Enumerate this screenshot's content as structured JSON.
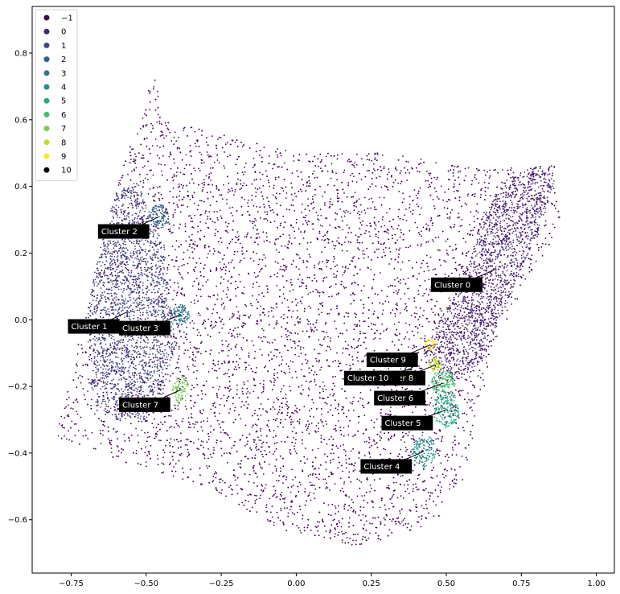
{
  "chart_data": {
    "type": "scatter",
    "title": "",
    "xlabel": "",
    "ylabel": "",
    "xlim": [
      -0.88,
      1.06
    ],
    "ylim": [
      -0.76,
      0.94
    ],
    "grid": false,
    "legend": {
      "placement": "top-left",
      "entries": [
        "−1",
        "0",
        "1",
        "2",
        "3",
        "4",
        "5",
        "6",
        "7",
        "8",
        "9",
        "10"
      ]
    },
    "x_ticks": [
      -0.75,
      -0.5,
      -0.25,
      0.0,
      0.25,
      0.5,
      0.75,
      1.0
    ],
    "x_tick_labels": [
      "−0.75",
      "−0.50",
      "−0.25",
      "0.00",
      "0.25",
      "0.50",
      "0.75",
      "1.00"
    ],
    "y_ticks": [
      -0.6,
      -0.4,
      -0.2,
      0.0,
      0.2,
      0.4,
      0.6,
      0.8
    ],
    "y_tick_labels": [
      "−0.6",
      "−0.4",
      "−0.2",
      "0.0",
      "0.2",
      "0.4",
      "0.6",
      "0.8"
    ],
    "colors": [
      "#440154",
      "#482475",
      "#414487",
      "#355f8d",
      "#2a788e",
      "#21918c",
      "#22a884",
      "#44bf70",
      "#7ad151",
      "#bddf26",
      "#fde725"
    ],
    "noise_region": [
      [
        -0.8,
        -0.35
      ],
      [
        -0.72,
        -0.05
      ],
      [
        -0.58,
        0.45
      ],
      [
        -0.47,
        0.75
      ],
      [
        -0.45,
        0.6
      ],
      [
        0.0,
        0.5
      ],
      [
        0.3,
        0.5
      ],
      [
        0.62,
        0.45
      ],
      [
        0.86,
        0.47
      ],
      [
        0.88,
        0.28
      ],
      [
        0.76,
        0.1
      ],
      [
        0.65,
        -0.1
      ],
      [
        0.6,
        -0.32
      ],
      [
        0.55,
        -0.5
      ],
      [
        0.45,
        -0.62
      ],
      [
        0.2,
        -0.68
      ],
      [
        -0.05,
        -0.63
      ],
      [
        -0.3,
        -0.5
      ],
      [
        -0.6,
        -0.42
      ]
    ],
    "series": [
      {
        "name": "−1",
        "n": 7000,
        "region": "noise"
      },
      {
        "name": "0",
        "n": 1600,
        "polygon": [
          [
            0.42,
            -0.1
          ],
          [
            0.48,
            0.0
          ],
          [
            0.58,
            0.18
          ],
          [
            0.62,
            0.32
          ],
          [
            0.7,
            0.42
          ],
          [
            0.8,
            0.46
          ],
          [
            0.86,
            0.42
          ],
          [
            0.82,
            0.3
          ],
          [
            0.75,
            0.15
          ],
          [
            0.68,
            0.0
          ],
          [
            0.62,
            -0.12
          ],
          [
            0.55,
            -0.18
          ],
          [
            0.47,
            -0.16
          ]
        ]
      },
      {
        "name": "1",
        "n": 1900,
        "polygon": [
          [
            -0.68,
            -0.25
          ],
          [
            -0.7,
            0.0
          ],
          [
            -0.66,
            0.2
          ],
          [
            -0.6,
            0.38
          ],
          [
            -0.53,
            0.42
          ],
          [
            -0.48,
            0.3
          ],
          [
            -0.44,
            0.22
          ],
          [
            -0.42,
            0.05
          ],
          [
            -0.4,
            -0.05
          ],
          [
            -0.42,
            -0.15
          ],
          [
            -0.46,
            -0.25
          ],
          [
            -0.5,
            -0.3
          ],
          [
            -0.6,
            -0.3
          ]
        ]
      },
      {
        "name": "2",
        "n": 110,
        "center": [
          -0.455,
          0.31
        ],
        "radius": [
          0.033,
          0.036
        ]
      },
      {
        "name": "3",
        "n": 90,
        "center": [
          -0.385,
          0.015
        ],
        "radius": [
          0.03,
          0.03
        ]
      },
      {
        "name": "4",
        "n": 130,
        "center": [
          0.425,
          -0.395
        ],
        "radius": [
          0.04,
          0.05
        ]
      },
      {
        "name": "5",
        "n": 170,
        "center": [
          0.5,
          -0.27
        ],
        "radius": [
          0.045,
          0.055
        ]
      },
      {
        "name": "6",
        "n": 140,
        "center": [
          0.49,
          -0.19
        ],
        "radius": [
          0.04,
          0.04
        ]
      },
      {
        "name": "7",
        "n": 90,
        "center": [
          -0.385,
          -0.21
        ],
        "radius": [
          0.028,
          0.04
        ]
      },
      {
        "name": "8",
        "n": 55,
        "center": [
          0.465,
          -0.135
        ],
        "radius": [
          0.022,
          0.022
        ]
      },
      {
        "name": "9",
        "n": 35,
        "center": [
          0.447,
          -0.075
        ],
        "radius": [
          0.018,
          0.018
        ]
      },
      {
        "name": "10",
        "n": 12,
        "center": [
          0.378,
          -0.148
        ],
        "radius": [
          0.01,
          0.01
        ]
      }
    ],
    "annotations": [
      {
        "text": "Cluster 0",
        "point": [
          0.66,
          0.15
        ],
        "label_at": [
          0.46,
          0.105
        ]
      },
      {
        "text": "Cluster 1",
        "point": [
          -0.56,
          0.025
        ],
        "label_at": [
          -0.75,
          -0.02
        ]
      },
      {
        "text": "Cluster 2",
        "point": [
          -0.455,
          0.31
        ],
        "label_at": [
          -0.65,
          0.265
        ]
      },
      {
        "text": "Cluster 3",
        "point": [
          -0.385,
          0.015
        ],
        "label_at": [
          -0.58,
          -0.025
        ]
      },
      {
        "text": "Cluster 4",
        "point": [
          0.425,
          -0.395
        ],
        "label_at": [
          0.225,
          -0.44
        ]
      },
      {
        "text": "Cluster 5",
        "point": [
          0.5,
          -0.27
        ],
        "label_at": [
          0.295,
          -0.31
        ]
      },
      {
        "text": "Cluster 6",
        "point": [
          0.49,
          -0.19
        ],
        "label_at": [
          0.27,
          -0.235
        ]
      },
      {
        "text": "Cluster 7",
        "point": [
          -0.385,
          -0.21
        ],
        "label_at": [
          -0.58,
          -0.255
        ]
      },
      {
        "text": "Cluster 8",
        "point": [
          0.465,
          -0.135
        ],
        "label_at": [
          0.27,
          -0.175
        ]
      },
      {
        "text": "Cluster 9",
        "point": [
          0.447,
          -0.075
        ],
        "label_at": [
          0.245,
          -0.12
        ]
      },
      {
        "text": "Cluster 10",
        "point": [
          0.378,
          -0.148
        ],
        "label_at": [
          0.17,
          -0.175
        ]
      }
    ]
  }
}
